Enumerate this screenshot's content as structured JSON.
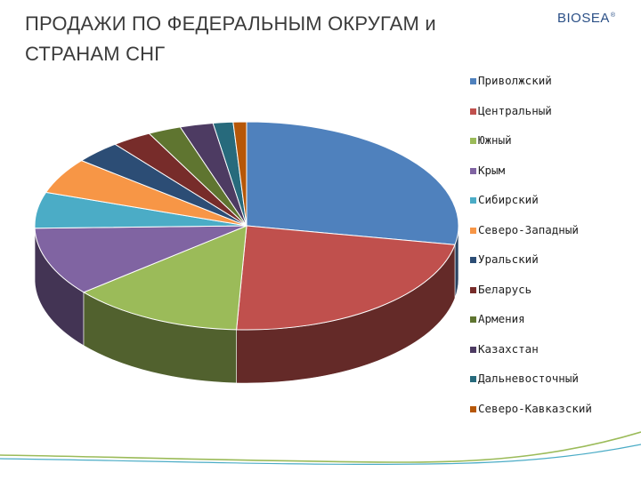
{
  "header": {
    "title_line1": "ПРОДАЖИ ПО ФЕДЕРАЛЬНЫМ ОКРУГАМ и",
    "title_line2": "СТРАНАМ СНГ",
    "logo_text": "BIOSEA",
    "logo_mark": "®"
  },
  "chart_data": {
    "type": "pie",
    "title": "ПРОДАЖИ ПО ФЕДЕРАЛЬНЫМ ОКРУГАМ и СТРАНАМ СНГ",
    "style": "3d",
    "legend_position": "right",
    "series": [
      {
        "label": "Приволжский",
        "value": 27.5,
        "color": "#4f81bd"
      },
      {
        "label": "Центральный",
        "value": 22.5,
        "color": "#c0504d"
      },
      {
        "label": "Южный",
        "value": 13.0,
        "color": "#9bbb59"
      },
      {
        "label": "Крым",
        "value": 10.5,
        "color": "#8064a2"
      },
      {
        "label": "Сибирский",
        "value": 5.5,
        "color": "#4bacc6"
      },
      {
        "label": "Северо-Западный",
        "value": 5.5,
        "color": "#f79646"
      },
      {
        "label": "Уральский",
        "value": 3.5,
        "color": "#2c4d75"
      },
      {
        "label": "Беларусь",
        "value": 3.0,
        "color": "#772c2a"
      },
      {
        "label": "Армения",
        "value": 2.5,
        "color": "#5f7530"
      },
      {
        "label": "Казахстан",
        "value": 2.5,
        "color": "#4d3b62"
      },
      {
        "label": "Дальневосточный",
        "value": 1.5,
        "color": "#276a7c"
      },
      {
        "label": "Северо-Кавказский",
        "value": 1.0,
        "color": "#b65708"
      }
    ]
  },
  "decor": {
    "wave_color_1": "#9bbb59",
    "wave_color_2": "#4bacc6"
  }
}
